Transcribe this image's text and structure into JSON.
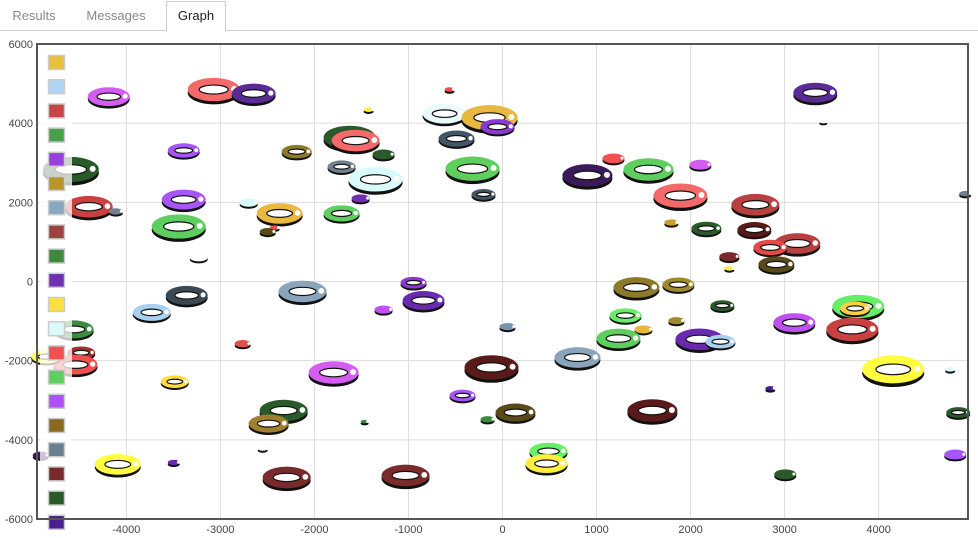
{
  "tabs": [
    {
      "label": "Results",
      "active": false
    },
    {
      "label": "Messages",
      "active": false
    },
    {
      "label": "Graph",
      "active": true
    }
  ],
  "chart_data": {
    "type": "scatter",
    "style": "3d donut bubbles",
    "title": "",
    "xlabel": "",
    "ylabel": "",
    "xlim": [
      -4950,
      4950
    ],
    "ylim": [
      -6000,
      6000
    ],
    "x_ticks": [
      -4000,
      -3000,
      -2000,
      -1000,
      0,
      1000,
      2000,
      3000,
      4000
    ],
    "y_ticks": [
      6000,
      4000,
      2000,
      0,
      -2000,
      -4000,
      -6000
    ],
    "x_tick_labels": [
      "-4000",
      "-3000",
      "-2000",
      "-1000",
      "0",
      "1000",
      "2000",
      "3000",
      "4000"
    ],
    "y_tick_labels": [
      "6000",
      "4000",
      "2000",
      "0",
      "-2000",
      "-4000",
      "-6000"
    ],
    "grid": true,
    "legend_placement": "left",
    "legend_colors": [
      "#e8c040",
      "#aed4f4",
      "#c84444",
      "#4aa04a",
      "#9a40e0",
      "#b8962a",
      "#88a8c0",
      "#a04040",
      "#3e8a3e",
      "#7030b0",
      "#ffe040",
      "#d8fafa",
      "#f05050",
      "#5ecf5e",
      "#b050f8",
      "#8a6a20",
      "#6a8090",
      "#7a2a2a",
      "#2a5a2a",
      "#4a2090",
      "#ffff60"
    ],
    "points": [
      {
        "x": -4187,
        "y": 4670,
        "size": 21,
        "color": "#d45cf0"
      },
      {
        "x": -3071,
        "y": 4850,
        "size": 26,
        "color": "#f46a6a"
      },
      {
        "x": -2646,
        "y": 4750,
        "size": 22,
        "color": "#5a2a96"
      },
      {
        "x": -563,
        "y": 4850,
        "size": 5,
        "color": "#f05050"
      },
      {
        "x": -616,
        "y": 4240,
        "size": 22,
        "color": "#eafafa"
      },
      {
        "x": -138,
        "y": 4140,
        "size": 28,
        "color": "#e8b840"
      },
      {
        "x": -53,
        "y": 3910,
        "size": 17,
        "color": "#8a3ad0"
      },
      {
        "x": -1424,
        "y": 4340,
        "size": 5,
        "color": "#ffee40"
      },
      {
        "x": 3326,
        "y": 4770,
        "size": 22,
        "color": "#5a2a96"
      },
      {
        "x": 3411,
        "y": 4040,
        "size": 4,
        "color": "#ffffff"
      },
      {
        "x": -3390,
        "y": 3310,
        "size": 16,
        "color": "#a855f7"
      },
      {
        "x": -2189,
        "y": 3280,
        "size": 15,
        "color": "#8a7a2a"
      },
      {
        "x": -1626,
        "y": 3640,
        "size": 26,
        "color": "#2a5a2a"
      },
      {
        "x": -1562,
        "y": 3560,
        "size": 24,
        "color": "#f46a6a"
      },
      {
        "x": -1265,
        "y": 3210,
        "size": 11,
        "color": "#2a5a2a"
      },
      {
        "x": -489,
        "y": 3610,
        "size": 18,
        "color": "#445566"
      },
      {
        "x": -319,
        "y": 2850,
        "size": 27,
        "color": "#5ecf5e"
      },
      {
        "x": -1711,
        "y": 2900,
        "size": 14,
        "color": "#708090"
      },
      {
        "x": -1350,
        "y": 2580,
        "size": 27,
        "color": "#d8fafa"
      },
      {
        "x": -1509,
        "y": 2100,
        "size": 9,
        "color": "#7030b0"
      },
      {
        "x": -202,
        "y": 2200,
        "size": 12,
        "color": "#445566"
      },
      {
        "x": 903,
        "y": 2680,
        "size": 25,
        "color": "#3a1a5a"
      },
      {
        "x": 1180,
        "y": 3110,
        "size": 11,
        "color": "#f05050"
      },
      {
        "x": 1552,
        "y": 2830,
        "size": 25,
        "color": "#5ecf5e"
      },
      {
        "x": 2104,
        "y": 2950,
        "size": 11,
        "color": "#d45cf0"
      },
      {
        "x": 1892,
        "y": 2170,
        "size": 27,
        "color": "#f46a6a"
      },
      {
        "x": -4590,
        "y": 2830,
        "size": 28,
        "color": "#2a5a2a"
      },
      {
        "x": -4400,
        "y": 1890,
        "size": 24,
        "color": "#c84040"
      },
      {
        "x": -4112,
        "y": 1770,
        "size": 7,
        "color": "#708090"
      },
      {
        "x": -3390,
        "y": 2070,
        "size": 22,
        "color": "#a855f7"
      },
      {
        "x": -3443,
        "y": 1390,
        "size": 27,
        "color": "#5ecf5e"
      },
      {
        "x": -2699,
        "y": 1990,
        "size": 9,
        "color": "#d8fafa"
      },
      {
        "x": -2370,
        "y": 1720,
        "size": 23,
        "color": "#e8b840"
      },
      {
        "x": -2423,
        "y": 1360,
        "size": 5,
        "color": "#f05050"
      },
      {
        "x": -2497,
        "y": 1260,
        "size": 8,
        "color": "#5a4a1a"
      },
      {
        "x": -1711,
        "y": 1720,
        "size": 18,
        "color": "#5ecf5e"
      },
      {
        "x": -3230,
        "y": 610,
        "size": 9,
        "color": "#ffffff"
      },
      {
        "x": 2689,
        "y": 1940,
        "size": 24,
        "color": "#b84040"
      },
      {
        "x": 1796,
        "y": 1490,
        "size": 7,
        "color": "#c8a030"
      },
      {
        "x": 2168,
        "y": 1340,
        "size": 15,
        "color": "#2a5a2a"
      },
      {
        "x": 3135,
        "y": 960,
        "size": 23,
        "color": "#b84040"
      },
      {
        "x": 2678,
        "y": 1310,
        "size": 17,
        "color": "#5a1a1a"
      },
      {
        "x": 2848,
        "y": 860,
        "size": 17,
        "color": "#e84848"
      },
      {
        "x": 2412,
        "y": 630,
        "size": 10,
        "color": "#7a2a2a"
      },
      {
        "x": 2412,
        "y": 330,
        "size": 5,
        "color": "#ffee40"
      },
      {
        "x": 2912,
        "y": 430,
        "size": 18,
        "color": "#5a4a1a"
      },
      {
        "x": 4920,
        "y": 2220,
        "size": 6,
        "color": "#708090"
      },
      {
        "x": -946,
        "y": -30,
        "size": 13,
        "color": "#8a3ad0"
      },
      {
        "x": -840,
        "y": -480,
        "size": 21,
        "color": "#6a2ab0"
      },
      {
        "x": -1265,
        "y": -710,
        "size": 9,
        "color": "#c050f0"
      },
      {
        "x": -3358,
        "y": -350,
        "size": 21,
        "color": "#3a4a55"
      },
      {
        "x": -3730,
        "y": -780,
        "size": 19,
        "color": "#a8d0f0"
      },
      {
        "x": -2126,
        "y": -250,
        "size": 24,
        "color": "#8aa4bc"
      },
      {
        "x": 1424,
        "y": -150,
        "size": 23,
        "color": "#8a7a2a"
      },
      {
        "x": 1870,
        "y": -80,
        "size": 16,
        "color": "#a08a30"
      },
      {
        "x": 2338,
        "y": -610,
        "size": 12,
        "color": "#2a5a2a"
      },
      {
        "x": 3783,
        "y": -630,
        "size": 26,
        "color": "#66ee66"
      },
      {
        "x": 3750,
        "y": -680,
        "size": 15,
        "color": "#ffd040"
      },
      {
        "x": 3103,
        "y": -1040,
        "size": 21,
        "color": "#c050f0"
      },
      {
        "x": 3720,
        "y": -1210,
        "size": 26,
        "color": "#c84040"
      },
      {
        "x": 1849,
        "y": -990,
        "size": 8,
        "color": "#a08a30"
      },
      {
        "x": 53,
        "y": -1140,
        "size": 8,
        "color": "#7a94ac"
      },
      {
        "x": 1307,
        "y": -860,
        "size": 16,
        "color": "#66ee66"
      },
      {
        "x": 1498,
        "y": -1210,
        "size": 9,
        "color": "#e8b840"
      },
      {
        "x": 1233,
        "y": -1440,
        "size": 22,
        "color": "#5ecf5e"
      },
      {
        "x": 2094,
        "y": -1460,
        "size": 24,
        "color": "#6a2ab0"
      },
      {
        "x": 2317,
        "y": -1520,
        "size": 15,
        "color": "#a8d0f0"
      },
      {
        "x": 797,
        "y": -1920,
        "size": 23,
        "color": "#8aa4bc"
      },
      {
        "x": -4560,
        "y": -1210,
        "size": 20,
        "color": "#3e8a3e"
      },
      {
        "x": -4480,
        "y": -1800,
        "size": 14,
        "color": "#a03030"
      },
      {
        "x": -4540,
        "y": -2100,
        "size": 22,
        "color": "#f05050"
      },
      {
        "x": -4850,
        "y": -1900,
        "size": 15,
        "color": "#ffff60"
      },
      {
        "x": -2763,
        "y": -1570,
        "size": 8,
        "color": "#e05050"
      },
      {
        "x": -3485,
        "y": -2530,
        "size": 14,
        "color": "#ffdd40"
      },
      {
        "x": -1796,
        "y": -2300,
        "size": 25,
        "color": "#d45cf0"
      },
      {
        "x": -117,
        "y": -2170,
        "size": 27,
        "color": "#5a1a1a"
      },
      {
        "x": -425,
        "y": -2880,
        "size": 13,
        "color": "#a855f7"
      },
      {
        "x": 2848,
        "y": -2700,
        "size": 5,
        "color": "#4a2090"
      },
      {
        "x": 4017,
        "y": -2150,
        "size": 10,
        "color": "#5ecf5e"
      },
      {
        "x": 4155,
        "y": -2220,
        "size": 31,
        "color": "#ffff40"
      },
      {
        "x": 4760,
        "y": -2220,
        "size": 5,
        "color": "#d8fafa"
      },
      {
        "x": -2327,
        "y": -3260,
        "size": 24,
        "color": "#2a5a2a"
      },
      {
        "x": -2487,
        "y": -3590,
        "size": 20,
        "color": "#a08030"
      },
      {
        "x": -1466,
        "y": -3540,
        "size": 4,
        "color": "#3e8a3e"
      },
      {
        "x": -159,
        "y": -3480,
        "size": 7,
        "color": "#3e8a3e"
      },
      {
        "x": 138,
        "y": -3310,
        "size": 20,
        "color": "#5a4a1a"
      },
      {
        "x": 1594,
        "y": -3260,
        "size": 25,
        "color": "#5a1a1a"
      },
      {
        "x": 4846,
        "y": -3310,
        "size": 12,
        "color": "#2a5a2a"
      },
      {
        "x": 489,
        "y": -4290,
        "size": 19,
        "color": "#66ee66"
      },
      {
        "x": 468,
        "y": -4600,
        "size": 21,
        "color": "#ffee40"
      },
      {
        "x": 4814,
        "y": -4370,
        "size": 11,
        "color": "#a855f7"
      },
      {
        "x": -4910,
        "y": -4390,
        "size": 8,
        "color": "#3a1a5a"
      },
      {
        "x": -4091,
        "y": -4620,
        "size": 23,
        "color": "#ffff40"
      },
      {
        "x": -3496,
        "y": -4570,
        "size": 6,
        "color": "#6a2ab0"
      },
      {
        "x": -2295,
        "y": -4950,
        "size": 24,
        "color": "#7a2a2a"
      },
      {
        "x": -1031,
        "y": -4900,
        "size": 24,
        "color": "#7a2a2a"
      },
      {
        "x": 3007,
        "y": -4870,
        "size": 11,
        "color": "#2a5a2a"
      },
      {
        "x": -2550,
        "y": -4220,
        "size": 5,
        "color": "#ffffff"
      }
    ]
  }
}
